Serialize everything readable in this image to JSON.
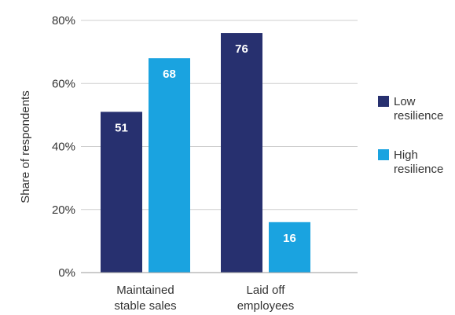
{
  "chart_data": {
    "type": "bar",
    "ylabel": "Share of respondents",
    "ylim": [
      0,
      80
    ],
    "y_ticks": [
      "0%",
      "20%",
      "40%",
      "60%",
      "80%"
    ],
    "y_tick_values": [
      0,
      20,
      40,
      60,
      80
    ],
    "categories": [
      [
        "Maintained",
        "stable sales"
      ],
      [
        "Laid off",
        "employees"
      ]
    ],
    "series": [
      {
        "name": [
          "Low",
          "resilience"
        ],
        "color": "#27306f",
        "values": [
          51,
          76
        ]
      },
      {
        "name": [
          "High",
          "resilience"
        ],
        "color": "#1aa3e0",
        "values": [
          68,
          16
        ]
      }
    ],
    "grid": true,
    "legend": "right"
  }
}
